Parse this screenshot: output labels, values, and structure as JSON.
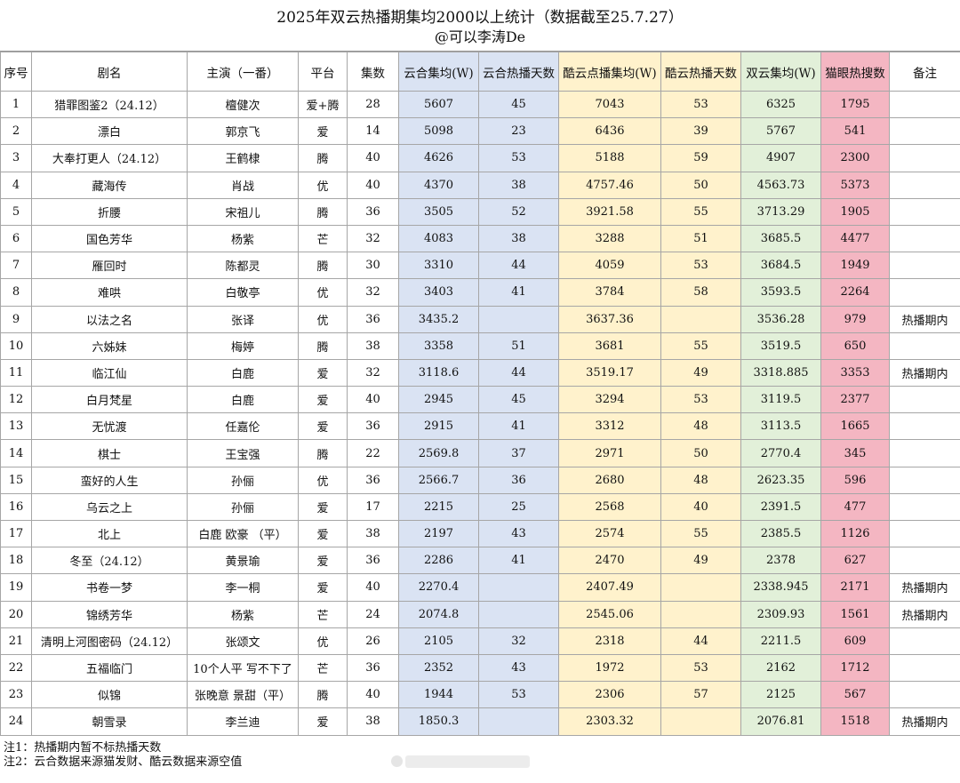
{
  "title": "2025年双云热播期集均2000以上统计（数据截至25.7.27）",
  "subtitle": "@可以李涛De",
  "headers": [
    "序号",
    "剧名",
    "主演（一番）",
    "平台",
    "集数",
    "云合集均(W)",
    "云合热播天数",
    "酷云点播集均(W)",
    "酷云热播天数",
    "双云集均(W)",
    "猫眼热搜数",
    "备注"
  ],
  "rows": [
    [
      "1",
      "猎罪图鉴2（24.12）",
      "檀健次",
      "爱+腾",
      "28",
      "5607",
      "45",
      "7043",
      "53",
      "6325",
      "1795",
      ""
    ],
    [
      "2",
      "漂白",
      "郭京飞",
      "爱",
      "14",
      "5098",
      "23",
      "6436",
      "39",
      "5767",
      "541",
      ""
    ],
    [
      "3",
      "大奉打更人（24.12）",
      "王鹤棣",
      "腾",
      "40",
      "4626",
      "53",
      "5188",
      "59",
      "4907",
      "2300",
      ""
    ],
    [
      "4",
      "藏海传",
      "肖战",
      "优",
      "40",
      "4370",
      "38",
      "4757.46",
      "50",
      "4563.73",
      "5373",
      ""
    ],
    [
      "5",
      "折腰",
      "宋祖儿",
      "腾",
      "36",
      "3505",
      "52",
      "3921.58",
      "55",
      "3713.29",
      "1905",
      ""
    ],
    [
      "6",
      "国色芳华",
      "杨紫",
      "芒",
      "32",
      "4083",
      "38",
      "3288",
      "51",
      "3685.5",
      "4477",
      ""
    ],
    [
      "7",
      "雁回时",
      "陈都灵",
      "腾",
      "30",
      "3310",
      "44",
      "4059",
      "53",
      "3684.5",
      "1949",
      ""
    ],
    [
      "8",
      "难哄",
      "白敬亭",
      "优",
      "32",
      "3403",
      "41",
      "3784",
      "58",
      "3593.5",
      "2264",
      ""
    ],
    [
      "9",
      "以法之名",
      "张译",
      "优",
      "36",
      "3435.2",
      "",
      "3637.36",
      "",
      "3536.28",
      "979",
      "热播期内"
    ],
    [
      "10",
      "六姊妹",
      "梅婷",
      "腾",
      "38",
      "3358",
      "51",
      "3681",
      "55",
      "3519.5",
      "650",
      ""
    ],
    [
      "11",
      "临江仙",
      "白鹿",
      "爱",
      "32",
      "3118.6",
      "44",
      "3519.17",
      "49",
      "3318.885",
      "3353",
      "热播期内"
    ],
    [
      "12",
      "白月梵星",
      "白鹿",
      "爱",
      "40",
      "2945",
      "45",
      "3294",
      "53",
      "3119.5",
      "2377",
      ""
    ],
    [
      "13",
      "无忧渡",
      "任嘉伦",
      "爱",
      "36",
      "2915",
      "41",
      "3312",
      "48",
      "3113.5",
      "1665",
      ""
    ],
    [
      "14",
      "棋士",
      "王宝强",
      "腾",
      "22",
      "2569.8",
      "37",
      "2971",
      "50",
      "2770.4",
      "345",
      ""
    ],
    [
      "15",
      "蛮好的人生",
      "孙俪",
      "优",
      "36",
      "2566.7",
      "36",
      "2680",
      "48",
      "2623.35",
      "596",
      ""
    ],
    [
      "16",
      "乌云之上",
      "孙俪",
      "爱",
      "17",
      "2215",
      "25",
      "2568",
      "40",
      "2391.5",
      "477",
      ""
    ],
    [
      "17",
      "北上",
      "白鹿 欧豪 （平）",
      "爱",
      "38",
      "2197",
      "43",
      "2574",
      "55",
      "2385.5",
      "1126",
      ""
    ],
    [
      "18",
      "冬至（24.12）",
      "黄景瑜",
      "爱",
      "36",
      "2286",
      "41",
      "2470",
      "49",
      "2378",
      "627",
      ""
    ],
    [
      "19",
      "书卷一梦",
      "李一桐",
      "爱",
      "40",
      "2270.4",
      "",
      "2407.49",
      "",
      "2338.945",
      "2171",
      "热播期内"
    ],
    [
      "20",
      "锦绣芳华",
      "杨紫",
      "芒",
      "24",
      "2074.8",
      "",
      "2545.06",
      "",
      "2309.93",
      "1561",
      "热播期内"
    ],
    [
      "21",
      "清明上河图密码（24.12）",
      "张颂文",
      "优",
      "26",
      "2105",
      "32",
      "2318",
      "44",
      "2211.5",
      "609",
      ""
    ],
    [
      "22",
      "五福临门",
      "10个人平 写不下了",
      "芒",
      "36",
      "2352",
      "43",
      "1972",
      "53",
      "2162",
      "1712",
      ""
    ],
    [
      "23",
      "似锦",
      "张晚意 景甜（平）",
      "腾",
      "40",
      "1944",
      "53",
      "2306",
      "57",
      "2125",
      "567",
      ""
    ],
    [
      "24",
      "朝雪录",
      "李兰迪",
      "爱",
      "38",
      "1850.3",
      "",
      "2303.32",
      "",
      "2076.81",
      "1518",
      "热播期内"
    ]
  ],
  "notes": [
    "注1：热播期内暂不标热播天数",
    "注2：云合数据来源猫发财、酷云数据来源空值"
  ],
  "colors": {
    "blue": "#dae3f3",
    "yellow": "#fff2cc",
    "green": "#e2f0d9",
    "pink": "#f4b6c2"
  }
}
